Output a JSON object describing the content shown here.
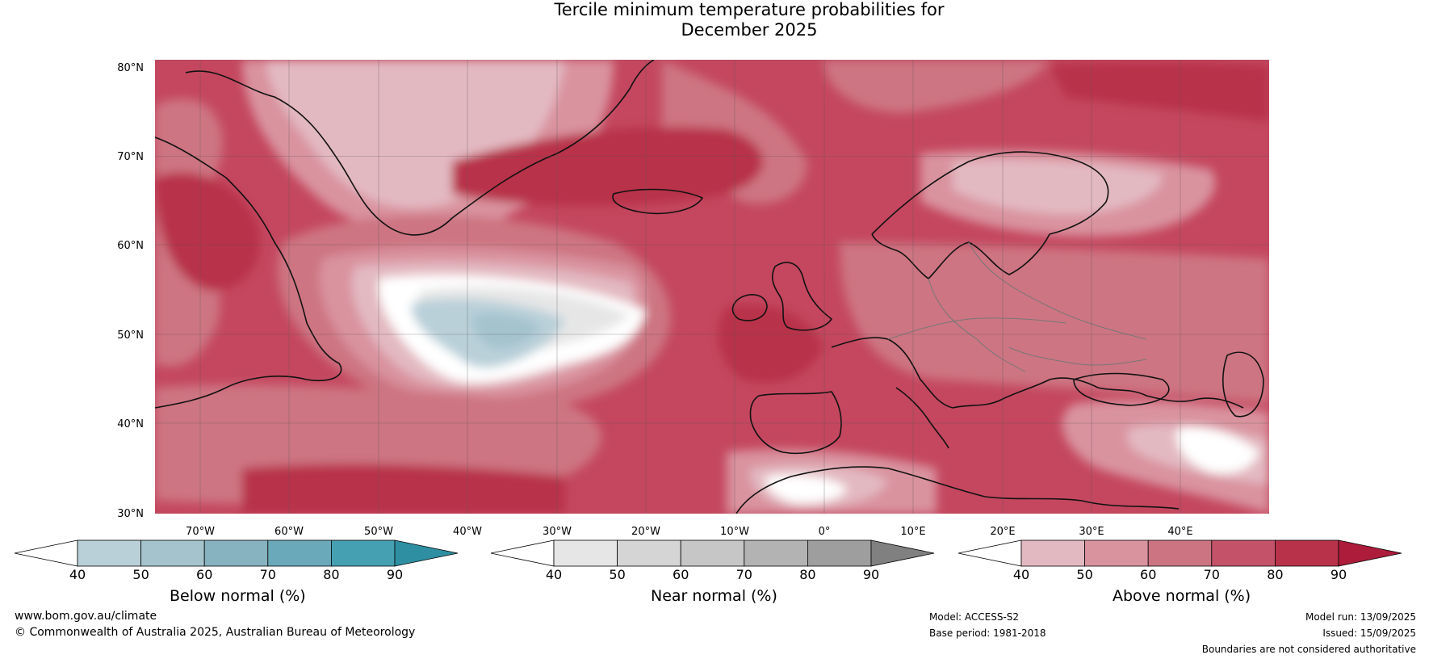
{
  "title": {
    "line1": "Tercile minimum temperature probabilities for",
    "line2": "December 2025"
  },
  "map": {
    "lat_ticks": [
      "80°N",
      "70°N",
      "60°N",
      "50°N",
      "40°N",
      "30°N"
    ],
    "lon_ticks": [
      "70°W",
      "60°W",
      "50°W",
      "40°W",
      "30°W",
      "20°W",
      "10°W",
      "0°",
      "10°E",
      "20°E",
      "30°E",
      "40°E"
    ],
    "dominant_color": "#c4344f"
  },
  "colorbars": [
    {
      "label": "Below normal (%)",
      "ticks": [
        "40",
        "50",
        "60",
        "70",
        "80",
        "90"
      ],
      "colors": [
        "#ffffff",
        "#b9d0d9",
        "#a4c3cd",
        "#87b2c0",
        "#6aa9ba",
        "#45a0b2",
        "#2f8fa2"
      ]
    },
    {
      "label": "Near normal (%)",
      "ticks": [
        "40",
        "50",
        "60",
        "70",
        "80",
        "90"
      ],
      "colors": [
        "#ffffff",
        "#e6e6e6",
        "#d5d5d5",
        "#c6c6c6",
        "#b3b3b3",
        "#9e9e9e",
        "#808080"
      ]
    },
    {
      "label": "Above normal (%)",
      "ticks": [
        "40",
        "50",
        "60",
        "70",
        "80",
        "90"
      ],
      "colors": [
        "#ffffff",
        "#e3b9c1",
        "#d9939f",
        "#cd7482",
        "#c4536a",
        "#b8324a",
        "#ad1c3b"
      ]
    }
  ],
  "footer": {
    "website": "www.bom.gov.au/climate",
    "copyright": "© Commonwealth of Australia 2025, Australian Bureau of Meteorology",
    "model": "Model: ACCESS-S2",
    "base_period": "Base period: 1981-2018",
    "model_run": "Model run: 13/09/2025",
    "issued": "Issued: 15/09/2025",
    "disclaimer": "Boundaries are not considered authoritative"
  }
}
